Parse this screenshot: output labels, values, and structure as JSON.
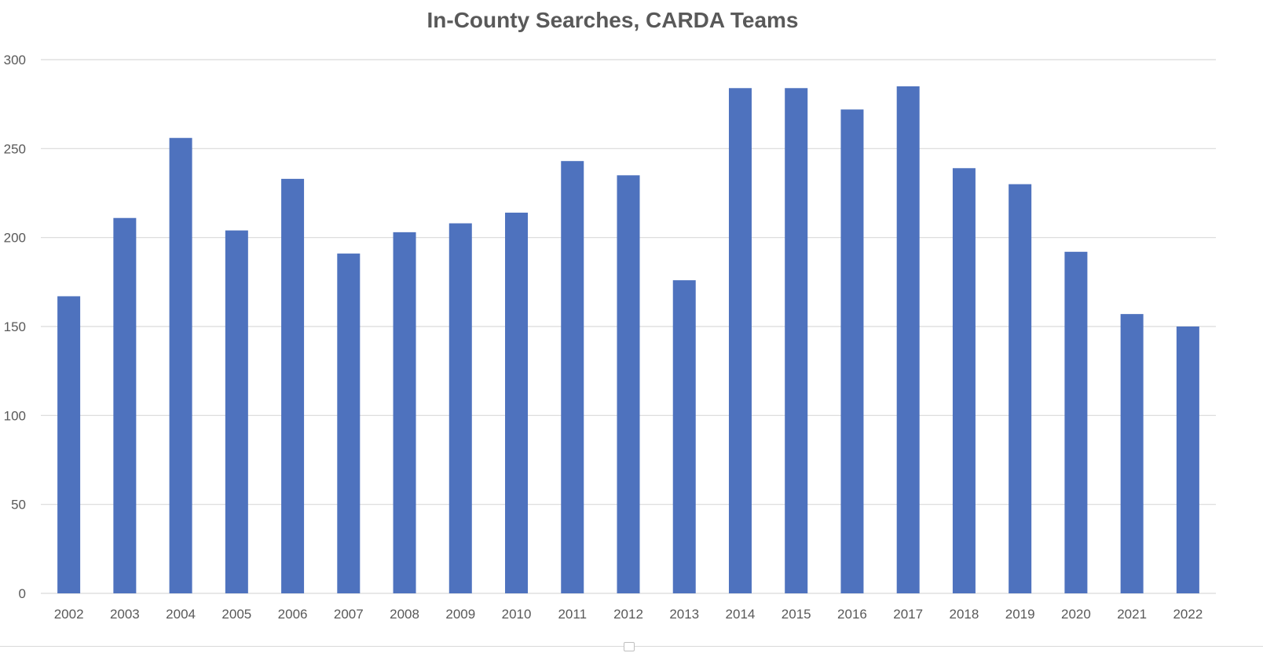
{
  "chart_data": {
    "type": "bar",
    "title": "In-County Searches, CARDA Teams",
    "xlabel": "",
    "ylabel": "",
    "categories": [
      "2002",
      "2003",
      "2004",
      "2005",
      "2006",
      "2007",
      "2008",
      "2009",
      "2010",
      "2011",
      "2012",
      "2013",
      "2014",
      "2015",
      "2016",
      "2017",
      "2018",
      "2019",
      "2020",
      "2021",
      "2022"
    ],
    "values": [
      167,
      211,
      256,
      204,
      233,
      191,
      203,
      208,
      214,
      243,
      235,
      176,
      284,
      284,
      272,
      285,
      239,
      230,
      192,
      157,
      150
    ],
    "ylim": [
      0,
      300
    ],
    "yticks": [
      0,
      50,
      100,
      150,
      200,
      250,
      300
    ],
    "grid": true,
    "legend": "none",
    "colors": {
      "bar": "#4e72be",
      "grid": "#d9d9d9",
      "text": "#595959"
    }
  }
}
